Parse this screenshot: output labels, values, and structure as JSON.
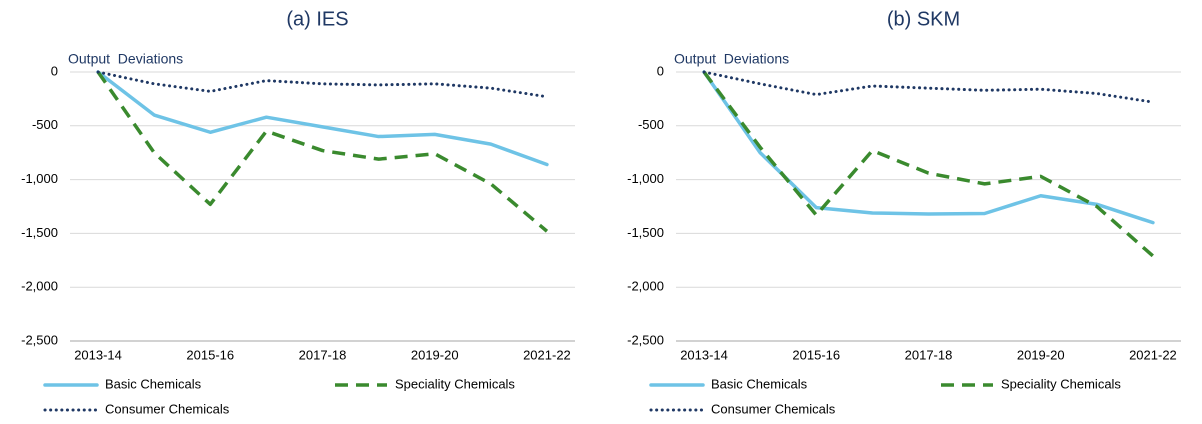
{
  "chart_data": [
    {
      "type": "line",
      "title": "(a) IES",
      "y_label": "Output  Deviations",
      "categories": [
        "2013-14",
        null,
        "2015-16",
        null,
        "2017-18",
        null,
        "2019-20",
        null,
        "2021-22"
      ],
      "ylim": [
        -2500,
        0
      ],
      "yticks": [
        {
          "value": -2500,
          "label": "-2,500"
        },
        {
          "value": -2000,
          "label": "-2,000"
        },
        {
          "value": -1500,
          "label": "-1,500"
        },
        {
          "value": -1000,
          "label": "-1,000"
        },
        -500,
        0
      ],
      "grid": true,
      "series": [
        {
          "name": "Basic Chemicals",
          "color": "#6ec3e6",
          "style": "solid",
          "values": [
            0,
            -400,
            -560,
            -420,
            -510,
            -600,
            -580,
            -670,
            -860
          ]
        },
        {
          "name": "Speciality Chemicals",
          "color": "#3a8a2e",
          "style": "dashed",
          "values": [
            0,
            -750,
            -1230,
            -550,
            -730,
            -810,
            -760,
            -1040,
            -1480
          ]
        },
        {
          "name": "Consumer Chemicals",
          "color": "#1f3864",
          "style": "dotted",
          "values": [
            0,
            -110,
            -180,
            -80,
            -110,
            -120,
            -110,
            -150,
            -230
          ]
        }
      ]
    },
    {
      "type": "line",
      "title": "(b) SKM",
      "y_label": "Output  Deviations",
      "categories": [
        "2013-14",
        null,
        "2015-16",
        null,
        "2017-18",
        null,
        "2019-20",
        null,
        "2021-22"
      ],
      "ylim": [
        -2500,
        0
      ],
      "yticks": [
        {
          "value": -2500,
          "label": "-2,500"
        },
        {
          "value": -2000,
          "label": "-2,000"
        },
        {
          "value": -1500,
          "label": "-1,500"
        },
        {
          "value": -1000,
          "label": "-1,000"
        },
        -500,
        0
      ],
      "grid": true,
      "series": [
        {
          "name": "Basic Chemicals",
          "color": "#6ec3e6",
          "style": "solid",
          "values": [
            0,
            -750,
            -1260,
            -1310,
            -1320,
            -1315,
            -1150,
            -1230,
            -1400
          ]
        },
        {
          "name": "Speciality Chemicals",
          "color": "#3a8a2e",
          "style": "dashed",
          "values": [
            0,
            -700,
            -1330,
            -730,
            -940,
            -1040,
            -970,
            -1250,
            -1710
          ]
        },
        {
          "name": "Consumer Chemicals",
          "color": "#1f3864",
          "style": "dotted",
          "values": [
            0,
            -110,
            -210,
            -130,
            -150,
            -170,
            -160,
            -200,
            -280
          ]
        }
      ]
    }
  ]
}
